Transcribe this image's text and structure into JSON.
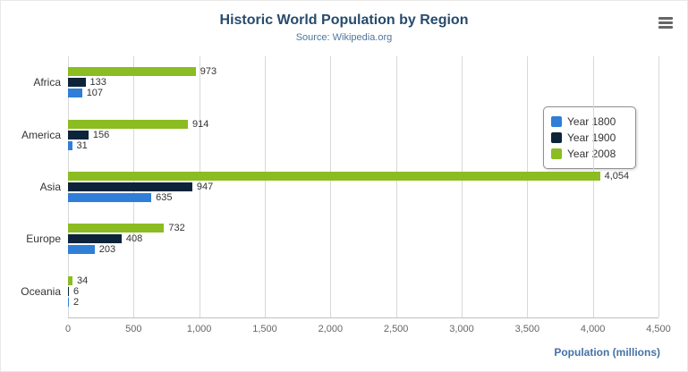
{
  "chart": {
    "title": "Historic World Population by Region",
    "subtitle": "Source: Wikipedia.org",
    "xlabel": "Population (millions)"
  },
  "icons": {
    "export_menu": "hamburger-menu-icon"
  },
  "chart_data": {
    "type": "bar",
    "orientation": "horizontal",
    "title": "Historic World Population by Region",
    "subtitle": "Source: Wikipedia.org",
    "categories": [
      "Africa",
      "America",
      "Asia",
      "Europe",
      "Oceania"
    ],
    "series": [
      {
        "name": "Year 1800",
        "color": "#2f7ed8",
        "values": [
          107,
          31,
          635,
          203,
          2
        ]
      },
      {
        "name": "Year 1900",
        "color": "#0d233a",
        "values": [
          133,
          156,
          947,
          408,
          6
        ]
      },
      {
        "name": "Year 2008",
        "color": "#8bbc21",
        "values": [
          973,
          914,
          4054,
          732,
          34
        ]
      }
    ],
    "bar_order_top_to_bottom": [
      "Year 2008",
      "Year 1900",
      "Year 1800"
    ],
    "xlabel": "Population (millions)",
    "xlim": [
      0,
      4500
    ],
    "xticks": [
      0,
      500,
      1000,
      1500,
      2000,
      2500,
      3000,
      3500,
      4000,
      4500
    ],
    "grid": true,
    "legend_position": "right"
  }
}
